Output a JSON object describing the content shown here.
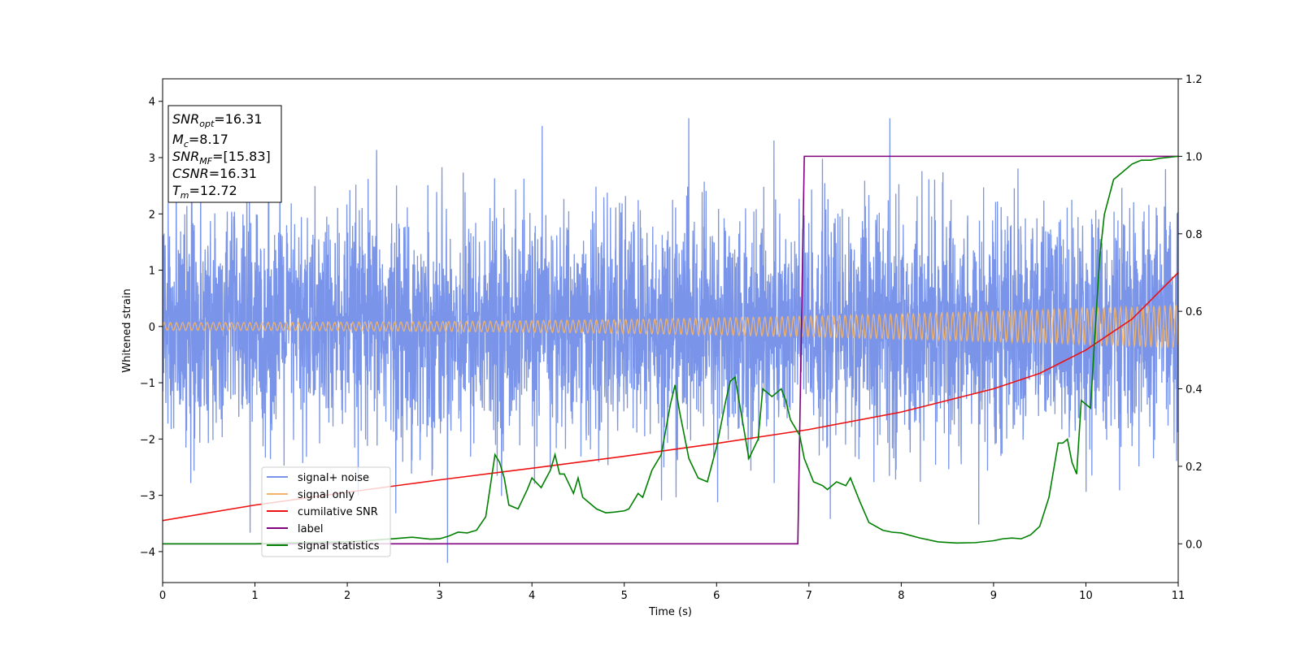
{
  "chart_data": {
    "type": "line",
    "xlabel": "Time (s)",
    "ylabel": "Whitened strain",
    "xlim": [
      0,
      11
    ],
    "ylim": [
      -4.55,
      4.4
    ],
    "y2lim": [
      -0.1,
      1.2
    ],
    "x_ticks": [
      0,
      1,
      2,
      3,
      4,
      5,
      6,
      7,
      8,
      9,
      10,
      11
    ],
    "y_ticks": [
      -4,
      -3,
      -2,
      -1,
      0,
      1,
      2,
      3,
      4
    ],
    "y2_ticks": [
      0.0,
      0.2,
      0.4,
      0.6,
      0.8,
      1.0,
      1.2
    ],
    "x_tick_labels": [
      "0",
      "1",
      "2",
      "3",
      "4",
      "5",
      "6",
      "7",
      "8",
      "9",
      "10",
      "11"
    ],
    "y_tick_labels": [
      "−4",
      "−3",
      "−2",
      "−1",
      "0",
      "1",
      "2",
      "3",
      "4"
    ],
    "y2_tick_labels": [
      "0.0",
      "0.2",
      "0.4",
      "0.6",
      "0.8",
      "1.0",
      "1.2"
    ],
    "grid": false,
    "legend_placement": "lower-left",
    "info_box": {
      "lines": [
        {
          "sym": "SNR",
          "sub": "opt",
          "val": "=16.31"
        },
        {
          "sym": "M",
          "sub": "c",
          "val": "=8.17"
        },
        {
          "sym": "SNR",
          "sub": "MF",
          "val": "=[15.83]"
        },
        {
          "sym": "CSNR",
          "sub": "",
          "val": "=16.31"
        },
        {
          "sym": "T",
          "sub": "m",
          "val": "=12.72"
        }
      ]
    },
    "series": [
      {
        "name": "signal+ noise",
        "color": "#7994e8",
        "axis": "left",
        "style": "noise",
        "std": 1.0,
        "range": [
          -4.2,
          3.7
        ]
      },
      {
        "name": "signal only",
        "color": "#f4b56b",
        "axis": "left",
        "style": "chirp",
        "amplitude_start": 0.07,
        "amplitude_end": 0.38
      },
      {
        "name": "cumilative SNR",
        "color": "#ee1111",
        "axis": "right",
        "x": [
          0,
          1,
          2,
          3,
          4,
          5,
          6,
          7,
          8,
          9,
          9.5,
          10,
          10.5,
          11
        ],
        "values": [
          0.06,
          0.1,
          0.133,
          0.165,
          0.195,
          0.226,
          0.259,
          0.295,
          0.34,
          0.4,
          0.44,
          0.5,
          0.58,
          0.7
        ]
      },
      {
        "name": "label",
        "color": "#800080",
        "axis": "right",
        "x": [
          0,
          6.88,
          6.95,
          11
        ],
        "values": [
          0,
          0,
          1,
          1
        ]
      },
      {
        "name": "signal statistics",
        "color": "#008000",
        "axis": "right",
        "x": [
          0,
          0.5,
          1,
          1.5,
          2,
          2.5,
          2.7,
          2.9,
          3.0,
          3.1,
          3.2,
          3.3,
          3.4,
          3.5,
          3.6,
          3.65,
          3.7,
          3.75,
          3.85,
          3.95,
          4.0,
          4.1,
          4.2,
          4.25,
          4.3,
          4.35,
          4.45,
          4.5,
          4.55,
          4.6,
          4.7,
          4.8,
          4.9,
          5.0,
          5.05,
          5.15,
          5.2,
          5.3,
          5.4,
          5.5,
          5.55,
          5.6,
          5.7,
          5.8,
          5.9,
          6.0,
          6.1,
          6.15,
          6.2,
          6.25,
          6.35,
          6.45,
          6.5,
          6.6,
          6.7,
          6.75,
          6.8,
          6.9,
          6.95,
          7.05,
          7.15,
          7.2,
          7.3,
          7.4,
          7.45,
          7.55,
          7.65,
          7.8,
          7.9,
          8.0,
          8.2,
          8.4,
          8.6,
          8.8,
          9.0,
          9.1,
          9.2,
          9.3,
          9.4,
          9.5,
          9.6,
          9.7,
          9.75,
          9.8,
          9.85,
          9.9,
          9.95,
          10.0,
          10.05,
          10.1,
          10.15,
          10.2,
          10.3,
          10.4,
          10.5,
          10.6,
          10.7,
          10.8,
          11
        ],
        "values": [
          0.0,
          0.0,
          0.0,
          0.003,
          0.005,
          0.013,
          0.017,
          0.012,
          0.013,
          0.02,
          0.03,
          0.028,
          0.035,
          0.07,
          0.23,
          0.21,
          0.17,
          0.1,
          0.09,
          0.14,
          0.17,
          0.145,
          0.19,
          0.23,
          0.18,
          0.18,
          0.13,
          0.17,
          0.12,
          0.11,
          0.09,
          0.08,
          0.082,
          0.085,
          0.09,
          0.13,
          0.12,
          0.19,
          0.23,
          0.36,
          0.41,
          0.34,
          0.22,
          0.17,
          0.16,
          0.25,
          0.37,
          0.42,
          0.43,
          0.36,
          0.22,
          0.27,
          0.4,
          0.38,
          0.4,
          0.37,
          0.32,
          0.28,
          0.22,
          0.16,
          0.15,
          0.14,
          0.16,
          0.15,
          0.17,
          0.11,
          0.055,
          0.035,
          0.03,
          0.028,
          0.015,
          0.005,
          0.002,
          0.003,
          0.008,
          0.013,
          0.015,
          0.013,
          0.023,
          0.045,
          0.12,
          0.26,
          0.26,
          0.27,
          0.21,
          0.18,
          0.37,
          0.36,
          0.35,
          0.55,
          0.74,
          0.85,
          0.94,
          0.96,
          0.98,
          0.99,
          0.99,
          0.995,
          1.0
        ]
      }
    ]
  }
}
